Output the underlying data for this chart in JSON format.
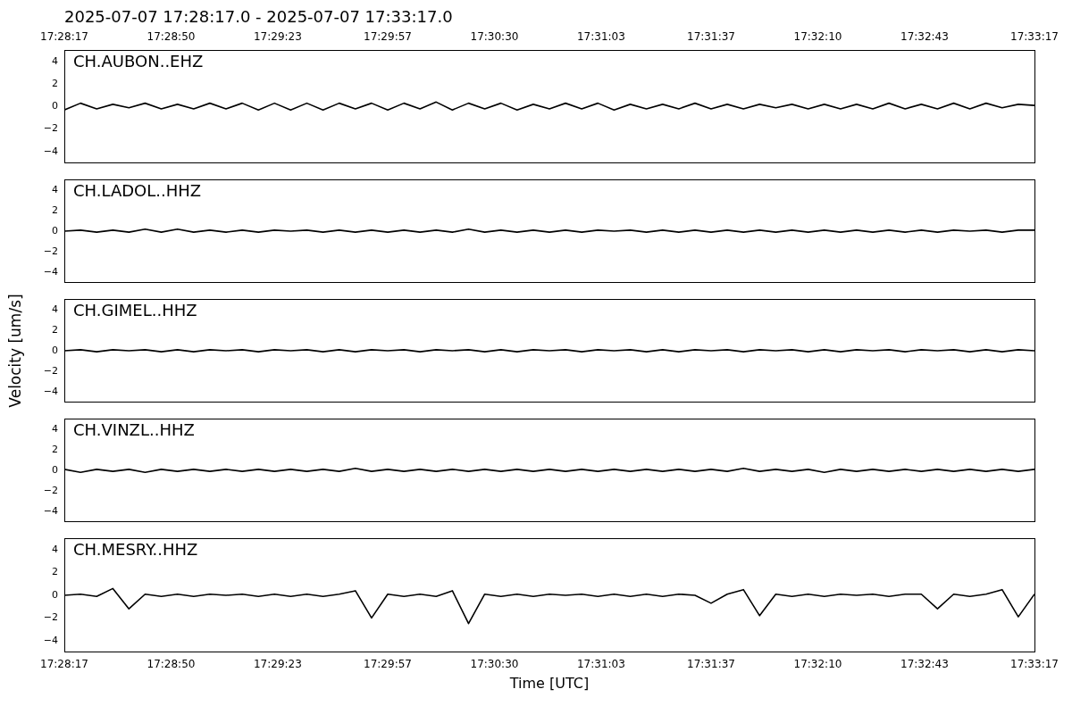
{
  "chart_data": [
    {
      "type": "line",
      "title": "2025-07-07 17:28:17.0 - 2025-07-07 17:33:17.0",
      "x": [
        17.47139,
        17.47278,
        17.47417,
        17.47556,
        17.47694,
        17.47833,
        17.47972,
        17.48111,
        17.4825,
        17.48389,
        17.48528,
        17.48667,
        17.48806,
        17.48944,
        17.49083,
        17.49222,
        17.49361,
        17.495,
        17.49639,
        17.49778,
        17.49917,
        17.50056,
        17.50194,
        17.50333,
        17.50472,
        17.50611,
        17.5075,
        17.50889,
        17.51028,
        17.51167,
        17.51306,
        17.51444,
        17.51583,
        17.51722,
        17.51861,
        17.52,
        17.52139,
        17.52278,
        17.52417,
        17.52556,
        17.52694,
        17.52833,
        17.52972,
        17.53111,
        17.5325,
        17.53389,
        17.53528,
        17.53667,
        17.53806,
        17.53944,
        17.54083,
        17.54222,
        17.54361,
        17.545,
        17.54639,
        17.54778,
        17.54917,
        17.55056,
        17.55194,
        17.55333,
        17.55472
      ],
      "series": [
        {
          "name": "CH.AUBON..EHZ",
          "color": "#000000",
          "values": [
            -0.3,
            0.3,
            -0.2,
            0.2,
            -0.1,
            0.3,
            -0.2,
            0.2,
            -0.2,
            0.3,
            -0.2,
            0.3,
            -0.3,
            0.3,
            -0.3,
            0.3,
            -0.3,
            0.3,
            -0.2,
            0.3,
            -0.3,
            0.3,
            -0.2,
            0.4,
            -0.3,
            0.3,
            -0.2,
            0.3,
            -0.3,
            0.2,
            -0.2,
            0.3,
            -0.2,
            0.3,
            -0.3,
            0.2,
            -0.2,
            0.2,
            -0.2,
            0.3,
            -0.2,
            0.2,
            -0.2,
            0.2,
            -0.1,
            0.2,
            -0.2,
            0.2,
            -0.2,
            0.2,
            -0.2,
            0.3,
            -0.2,
            0.2,
            -0.2,
            0.3,
            -0.2,
            0.3,
            -0.1,
            0.2,
            0.1
          ]
        }
      ],
      "xlim": [
        17.47139,
        17.55472
      ],
      "xticks": [
        {
          "value": 17.47139,
          "label": "17:28:17"
        },
        {
          "value": 17.480556,
          "label": "17:28:50"
        },
        {
          "value": 17.489722,
          "label": "17:29:23"
        },
        {
          "value": 17.499167,
          "label": "17:29:57"
        },
        {
          "value": 17.508333,
          "label": "17:30:30"
        },
        {
          "value": 17.5175,
          "label": "17:31:03"
        },
        {
          "value": 17.526944,
          "label": "17:31:37"
        },
        {
          "value": 17.536111,
          "label": "17:32:10"
        },
        {
          "value": 17.545278,
          "label": "17:32:43"
        },
        {
          "value": 17.55472,
          "label": "17:33:17"
        }
      ],
      "ylim": [
        -5,
        5
      ],
      "yticks": [
        -4,
        -2,
        0,
        2,
        4
      ]
    },
    {
      "type": "line",
      "x": [
        17.47139,
        17.47278,
        17.47417,
        17.47556,
        17.47694,
        17.47833,
        17.47972,
        17.48111,
        17.4825,
        17.48389,
        17.48528,
        17.48667,
        17.48806,
        17.48944,
        17.49083,
        17.49222,
        17.49361,
        17.495,
        17.49639,
        17.49778,
        17.49917,
        17.50056,
        17.50194,
        17.50333,
        17.50472,
        17.50611,
        17.5075,
        17.50889,
        17.51028,
        17.51167,
        17.51306,
        17.51444,
        17.51583,
        17.51722,
        17.51861,
        17.52,
        17.52139,
        17.52278,
        17.52417,
        17.52556,
        17.52694,
        17.52833,
        17.52972,
        17.53111,
        17.5325,
        17.53389,
        17.53528,
        17.53667,
        17.53806,
        17.53944,
        17.54083,
        17.54222,
        17.54361,
        17.545,
        17.54639,
        17.54778,
        17.54917,
        17.55056,
        17.55194,
        17.55333,
        17.55472
      ],
      "series": [
        {
          "name": "CH.LADOL..HHZ",
          "color": "#000000",
          "values": [
            0,
            0.1,
            -0.1,
            0.1,
            -0.1,
            0.2,
            -0.1,
            0.2,
            -0.1,
            0.1,
            -0.1,
            0.1,
            -0.1,
            0.1,
            0,
            0.1,
            -0.1,
            0.1,
            -0.1,
            0.1,
            -0.1,
            0.1,
            -0.1,
            0.1,
            -0.1,
            0.2,
            -0.1,
            0.1,
            -0.1,
            0.1,
            -0.1,
            0.1,
            -0.1,
            0.1,
            0,
            0.1,
            -0.1,
            0.1,
            -0.1,
            0.1,
            -0.1,
            0.1,
            -0.1,
            0.1,
            -0.1,
            0.1,
            -0.1,
            0.1,
            -0.1,
            0.1,
            -0.1,
            0.1,
            -0.1,
            0.1,
            -0.1,
            0.1,
            0,
            0.1,
            -0.1,
            0.1,
            0.1
          ]
        }
      ],
      "xlim": [
        17.47139,
        17.55472
      ],
      "ylim": [
        -5,
        5
      ],
      "yticks": [
        -4,
        -2,
        0,
        2,
        4
      ],
      "tick_labels": "y"
    },
    {
      "type": "line",
      "ylabel": "Velocity [um/s]",
      "x": [
        17.47139,
        17.47278,
        17.47417,
        17.47556,
        17.47694,
        17.47833,
        17.47972,
        17.48111,
        17.4825,
        17.48389,
        17.48528,
        17.48667,
        17.48806,
        17.48944,
        17.49083,
        17.49222,
        17.49361,
        17.495,
        17.49639,
        17.49778,
        17.49917,
        17.50056,
        17.50194,
        17.50333,
        17.50472,
        17.50611,
        17.5075,
        17.50889,
        17.51028,
        17.51167,
        17.51306,
        17.51444,
        17.51583,
        17.51722,
        17.51861,
        17.52,
        17.52139,
        17.52278,
        17.52417,
        17.52556,
        17.52694,
        17.52833,
        17.52972,
        17.53111,
        17.5325,
        17.53389,
        17.53528,
        17.53667,
        17.53806,
        17.53944,
        17.54083,
        17.54222,
        17.54361,
        17.545,
        17.54639,
        17.54778,
        17.54917,
        17.55056,
        17.55194,
        17.55333,
        17.55472
      ],
      "series": [
        {
          "name": "CH.GIMEL..HHZ",
          "color": "#000000",
          "values": [
            0,
            0.1,
            -0.1,
            0.1,
            0,
            0.1,
            -0.1,
            0.1,
            -0.1,
            0.1,
            0,
            0.1,
            -0.1,
            0.1,
            0,
            0.1,
            -0.1,
            0.1,
            -0.1,
            0.1,
            0,
            0.1,
            -0.1,
            0.1,
            0,
            0.1,
            -0.1,
            0.1,
            -0.1,
            0.1,
            0,
            0.1,
            -0.1,
            0.1,
            0,
            0.1,
            -0.1,
            0.1,
            -0.1,
            0.1,
            0,
            0.1,
            -0.1,
            0.1,
            0,
            0.1,
            -0.1,
            0.1,
            -0.1,
            0.1,
            0,
            0.1,
            -0.1,
            0.1,
            0,
            0.1,
            -0.1,
            0.1,
            -0.1,
            0.1,
            0
          ]
        }
      ],
      "xlim": [
        17.47139,
        17.55472
      ],
      "ylim": [
        -5,
        5
      ],
      "yticks": [
        -4,
        -2,
        0,
        2,
        4
      ],
      "tick_labels": "y"
    },
    {
      "type": "line",
      "x": [
        17.47139,
        17.47278,
        17.47417,
        17.47556,
        17.47694,
        17.47833,
        17.47972,
        17.48111,
        17.4825,
        17.48389,
        17.48528,
        17.48667,
        17.48806,
        17.48944,
        17.49083,
        17.49222,
        17.49361,
        17.495,
        17.49639,
        17.49778,
        17.49917,
        17.50056,
        17.50194,
        17.50333,
        17.50472,
        17.50611,
        17.5075,
        17.50889,
        17.51028,
        17.51167,
        17.51306,
        17.51444,
        17.51583,
        17.51722,
        17.51861,
        17.52,
        17.52139,
        17.52278,
        17.52417,
        17.52556,
        17.52694,
        17.52833,
        17.52972,
        17.53111,
        17.5325,
        17.53389,
        17.53528,
        17.53667,
        17.53806,
        17.53944,
        17.54083,
        17.54222,
        17.54361,
        17.545,
        17.54639,
        17.54778,
        17.54917,
        17.55056,
        17.55194,
        17.55333,
        17.55472
      ],
      "series": [
        {
          "name": "CH.VINZL..HHZ",
          "color": "#000000",
          "values": [
            0.1,
            -0.2,
            0.1,
            -0.1,
            0.1,
            -0.2,
            0.1,
            -0.1,
            0.1,
            -0.1,
            0.1,
            -0.1,
            0.1,
            -0.1,
            0.1,
            -0.1,
            0.1,
            -0.1,
            0.2,
            -0.1,
            0.1,
            -0.1,
            0.1,
            -0.1,
            0.1,
            -0.1,
            0.1,
            -0.1,
            0.1,
            -0.1,
            0.1,
            -0.1,
            0.1,
            -0.1,
            0.1,
            -0.1,
            0.1,
            -0.1,
            0.1,
            -0.1,
            0.1,
            -0.1,
            0.2,
            -0.1,
            0.1,
            -0.1,
            0.1,
            -0.2,
            0.1,
            -0.1,
            0.1,
            -0.1,
            0.1,
            -0.1,
            0.1,
            -0.1,
            0.1,
            -0.1,
            0.1,
            -0.1,
            0.1
          ]
        }
      ],
      "xlim": [
        17.47139,
        17.55472
      ],
      "ylim": [
        -5,
        5
      ],
      "yticks": [
        -4,
        -2,
        0,
        2,
        4
      ],
      "tick_labels": "y"
    },
    {
      "type": "line",
      "xlabel": "Time [UTC]",
      "x": [
        17.47139,
        17.47278,
        17.47417,
        17.47556,
        17.47694,
        17.47833,
        17.47972,
        17.48111,
        17.4825,
        17.48389,
        17.48528,
        17.48667,
        17.48806,
        17.48944,
        17.49083,
        17.49222,
        17.49361,
        17.495,
        17.49639,
        17.49778,
        17.49917,
        17.50056,
        17.50194,
        17.50333,
        17.50472,
        17.50611,
        17.5075,
        17.50889,
        17.51028,
        17.51167,
        17.51306,
        17.51444,
        17.51583,
        17.51722,
        17.51861,
        17.52,
        17.52139,
        17.52278,
        17.52417,
        17.52556,
        17.52694,
        17.52833,
        17.52972,
        17.53111,
        17.5325,
        17.53389,
        17.53528,
        17.53667,
        17.53806,
        17.53944,
        17.54083,
        17.54222,
        17.54361,
        17.545,
        17.54639,
        17.54778,
        17.54917,
        17.55056,
        17.55194,
        17.55333,
        17.55472
      ],
      "series": [
        {
          "name": "CH.MESRY..HHZ",
          "color": "#000000",
          "values": [
            0,
            0.1,
            -0.1,
            0.6,
            -1.2,
            0.1,
            -0.1,
            0.1,
            -0.1,
            0.1,
            0,
            0.1,
            -0.1,
            0.1,
            -0.1,
            0.1,
            -0.1,
            0.1,
            0.4,
            -2,
            0.1,
            -0.1,
            0.1,
            -0.1,
            0.4,
            -2.5,
            0.1,
            -0.1,
            0.1,
            -0.1,
            0.1,
            0,
            0.1,
            -0.1,
            0.1,
            -0.1,
            0.1,
            -0.1,
            0.1,
            0,
            -0.7,
            0.1,
            0.5,
            -1.8,
            0.1,
            -0.1,
            0.1,
            -0.1,
            0.1,
            0,
            0.1,
            -0.1,
            0.1,
            0.1,
            -1.2,
            0.1,
            -0.1,
            0.1,
            0.5,
            -1.9,
            0.1
          ]
        }
      ],
      "xlim": [
        17.47139,
        17.55472
      ],
      "xticks": [
        {
          "value": 17.47139,
          "label": "17:28:17"
        },
        {
          "value": 17.480556,
          "label": "17:28:50"
        },
        {
          "value": 17.489722,
          "label": "17:29:23"
        },
        {
          "value": 17.499167,
          "label": "17:29:57"
        },
        {
          "value": 17.508333,
          "label": "17:30:30"
        },
        {
          "value": 17.5175,
          "label": "17:31:03"
        },
        {
          "value": 17.526944,
          "label": "17:31:37"
        },
        {
          "value": 17.536111,
          "label": "17:32:10"
        },
        {
          "value": 17.545278,
          "label": "17:32:43"
        },
        {
          "value": 17.55472,
          "label": "17:33:17"
        }
      ],
      "ylim": [
        -5,
        5
      ],
      "yticks": [
        -4,
        -2,
        0,
        2,
        4
      ]
    }
  ]
}
